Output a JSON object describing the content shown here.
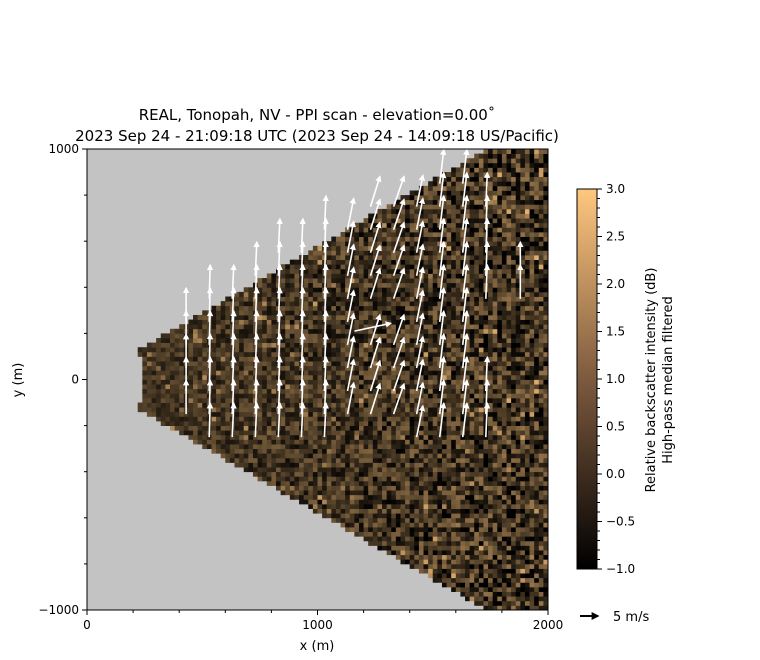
{
  "chart_data": {
    "type": "heatmap",
    "subtype": "ppi-scan-with-wind-vectors",
    "title_line1": "REAL, Tonopah, NV - PPI scan - elevation=0.00$^\\circ$",
    "title_line1_display": "REAL, Tonopah, NV - PPI scan - elevation=0.00˚",
    "title_line2": "2023 Sep 24 - 21:09:18 UTC (2023 Sep 24 - 14:09:18 US/Pacific)",
    "xlabel": "x (m)",
    "ylabel": "y (m)",
    "xlim": [
      0,
      2000
    ],
    "ylim": [
      -1000,
      1000
    ],
    "x_ticks": [
      0,
      1000,
      2000
    ],
    "x_tick_labels": [
      "0",
      "1000",
      "2000"
    ],
    "y_ticks": [
      -1000,
      0,
      1000
    ],
    "y_tick_labels": [
      "−1000",
      "0",
      "1000"
    ],
    "background_color": "#c3c3c3",
    "scan": {
      "azimuth_half_width_deg": 30,
      "min_range_m": 250,
      "max_range_m": 2000
    },
    "colorbar": {
      "label_line1": "Relative backscatter intensity (dB)",
      "label_line2": "High-pass median filtered",
      "vmin": -1.0,
      "vmax": 3.0,
      "ticks": [
        -1.0,
        -0.5,
        0.0,
        0.5,
        1.0,
        1.5,
        2.0,
        2.5,
        3.0
      ],
      "tick_labels": [
        "−1.0",
        "−0.5",
        "0.0",
        "0.5",
        "1.0",
        "1.5",
        "2.0",
        "2.5",
        "3.0"
      ],
      "colormap": "copper",
      "colors": [
        "#000000",
        "#ffc77f"
      ]
    },
    "vector_key": {
      "label": "5 m/s",
      "speed": 5
    },
    "vectors": {
      "color": "#ffffff",
      "columns": [
        {
          "x": 430,
          "ys": [
            -150,
            -50,
            50,
            150,
            250
          ],
          "u": 0.0,
          "v": 6.5
        },
        {
          "x": 530,
          "ys": [
            -250,
            -150,
            -50,
            50,
            150,
            250,
            350
          ],
          "u": 0.2,
          "v": 6.5
        },
        {
          "x": 630,
          "ys": [
            -250,
            -150,
            -50,
            50,
            150,
            250,
            350
          ],
          "u": 0.3,
          "v": 6.5
        },
        {
          "x": 730,
          "ys": [
            -250,
            -150,
            -50,
            50,
            150,
            250,
            350,
            450
          ],
          "u": 0.3,
          "v": 6.5
        },
        {
          "x": 830,
          "ys": [
            -250,
            -150,
            -50,
            50,
            150,
            250,
            350,
            450,
            550
          ],
          "u": 0.3,
          "v": 6.5
        },
        {
          "x": 930,
          "ys": [
            -250,
            -150,
            -50,
            50,
            150,
            250,
            350,
            450,
            550
          ],
          "u": 0.3,
          "v": 6.5
        },
        {
          "x": 1030,
          "ys": [
            -250,
            -150,
            -50,
            50,
            150,
            250,
            350,
            450,
            550,
            650
          ],
          "u": 0.3,
          "v": 6.5
        },
        {
          "x": 1130,
          "ys": [
            -150,
            -50,
            50,
            150,
            250,
            350,
            450,
            550,
            650
          ],
          "u": 1.2,
          "v": 6.0
        },
        {
          "x": 1230,
          "ys": [
            -150,
            -50,
            50,
            150,
            350,
            450,
            550,
            650,
            750
          ],
          "u": 1.8,
          "v": 5.8
        },
        {
          "x": 1330,
          "ys": [
            -150,
            -50,
            50,
            150,
            350,
            450,
            550,
            650,
            750
          ],
          "u": 2.0,
          "v": 5.8
        },
        {
          "x": 1430,
          "ys": [
            -250,
            -150,
            -50,
            50,
            150,
            250,
            350,
            450,
            550,
            650,
            750
          ],
          "u": 1.2,
          "v": 6.0
        },
        {
          "x": 1530,
          "ys": [
            -250,
            -150,
            -50,
            50,
            150,
            250,
            350,
            450,
            550,
            650,
            750,
            850
          ],
          "u": 0.8,
          "v": 6.5
        },
        {
          "x": 1630,
          "ys": [
            -250,
            -150,
            -50,
            50,
            150,
            250,
            350,
            450,
            550,
            650,
            750,
            850
          ],
          "u": 0.8,
          "v": 6.5
        },
        {
          "x": 1730,
          "ys": [
            -250,
            -150,
            -50,
            350,
            450,
            550,
            650,
            750
          ],
          "u": 0.3,
          "v": 6.5
        },
        {
          "x": 1880,
          "ys": [
            350,
            450
          ],
          "u": 0.0,
          "v": 6.5
        }
      ],
      "anomalies": [
        {
          "x": 1160,
          "y": 210,
          "u": 7.0,
          "v": 1.5
        }
      ]
    }
  }
}
